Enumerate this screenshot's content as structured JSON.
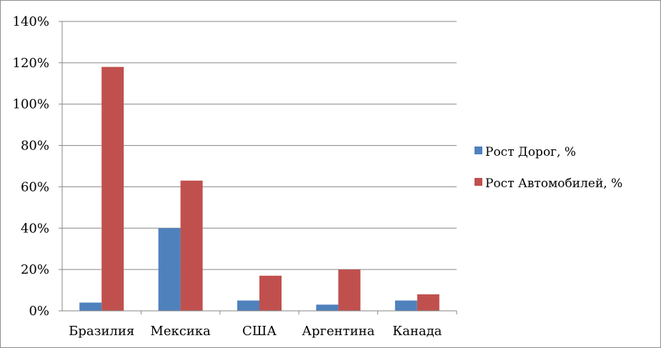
{
  "chart_data": {
    "type": "bar",
    "categories": [
      "Бразилия",
      "Мексика",
      "США",
      "Аргентина",
      "Канада"
    ],
    "series": [
      {
        "name": "Рост Дорог, %",
        "values": [
          4,
          40,
          5,
          3,
          5
        ],
        "color": "#4f81bd"
      },
      {
        "name": "Рост Автомобилей, %",
        "values": [
          118,
          63,
          17,
          20,
          8
        ],
        "color": "#c0504d"
      }
    ],
    "ylim": [
      0,
      140
    ],
    "y_ticks": [
      0,
      20,
      40,
      60,
      80,
      100,
      120,
      140
    ],
    "y_tick_labels": [
      "0%",
      "20%",
      "40%",
      "60%",
      "80%",
      "100%",
      "120%",
      "140%"
    ],
    "grid": true,
    "legend_position": "right",
    "title": "",
    "xlabel": "",
    "ylabel": ""
  }
}
